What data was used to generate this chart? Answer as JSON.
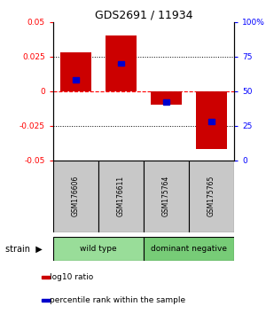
{
  "title": "GDS2691 / 11934",
  "samples": [
    "GSM176606",
    "GSM176611",
    "GSM175764",
    "GSM175765"
  ],
  "log10_ratios": [
    0.028,
    0.04,
    -0.01,
    -0.042
  ],
  "percentile_ranks": [
    0.008,
    0.02,
    -0.008,
    -0.022
  ],
  "ylim": [
    -0.05,
    0.05
  ],
  "yticks_left": [
    -0.05,
    -0.025,
    0,
    0.025,
    0.05
  ],
  "yticks_right": [
    0,
    25,
    50,
    75,
    100
  ],
  "groups": [
    {
      "label": "wild type",
      "samples": [
        0,
        1
      ],
      "color": "#99dd99"
    },
    {
      "label": "dominant negative",
      "samples": [
        2,
        3
      ],
      "color": "#77cc77"
    }
  ],
  "bar_color": "#cc0000",
  "marker_color": "#0000cc",
  "bar_width": 0.7,
  "legend": [
    {
      "color": "#cc0000",
      "label": "log10 ratio"
    },
    {
      "color": "#0000cc",
      "label": "percentile rank within the sample"
    }
  ],
  "bg_label": "#c8c8c8"
}
